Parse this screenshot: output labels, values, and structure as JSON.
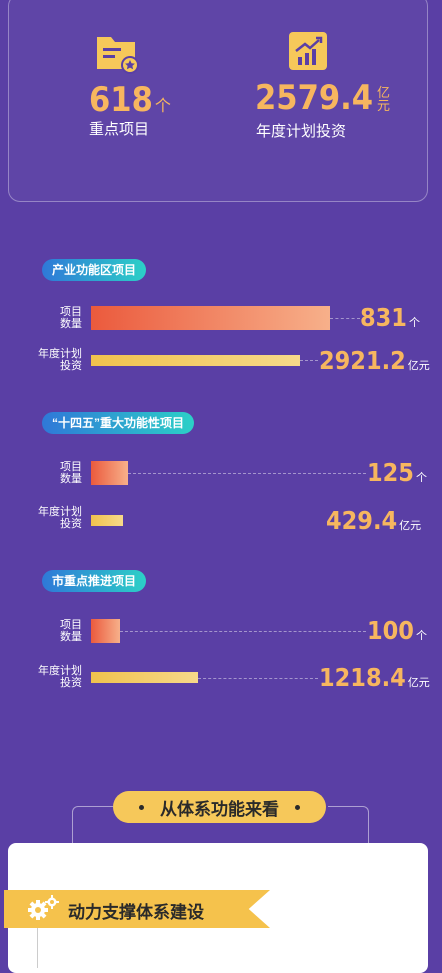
{
  "summary": {
    "projects": {
      "value": "618",
      "unit": "个",
      "label": "重点项目",
      "icon": "folder-star-icon"
    },
    "investment": {
      "value": "2579.4",
      "unit_top": "亿",
      "unit_bottom": "元",
      "label": "年度计划投资",
      "icon": "growth-chart-icon"
    }
  },
  "sections": [
    {
      "title": "产业功能区项目",
      "count_label_1": "项目",
      "count_label_2": "数量",
      "invest_label_1": "年度计划",
      "invest_label_2": "投资",
      "count": "831",
      "count_unit": "个",
      "invest": "2921.2",
      "invest_unit": "亿元"
    },
    {
      "title": "“十四五”重大功能性项目",
      "count_label_1": "项目",
      "count_label_2": "数量",
      "invest_label_1": "年度计划",
      "invest_label_2": "投资",
      "count": "125",
      "count_unit": "个",
      "invest": "429.4",
      "invest_unit": "亿元"
    },
    {
      "title": "市重点推进项目",
      "count_label_1": "项目",
      "count_label_2": "数量",
      "invest_label_1": "年度计划",
      "invest_label_2": "投资",
      "count": "100",
      "count_unit": "个",
      "invest": "1218.4",
      "invest_unit": "亿元"
    }
  ],
  "heading": {
    "text": "从体系功能来看"
  },
  "ribbon": {
    "text": "动力支撑体系建设",
    "icon": "gears-icon"
  },
  "colors": {
    "background": "#5a3fa5",
    "accent": "#f7b65f",
    "pill_start": "#2f78d8",
    "pill_end": "#2cd0c7",
    "ribbon": "#f5c24c"
  }
}
